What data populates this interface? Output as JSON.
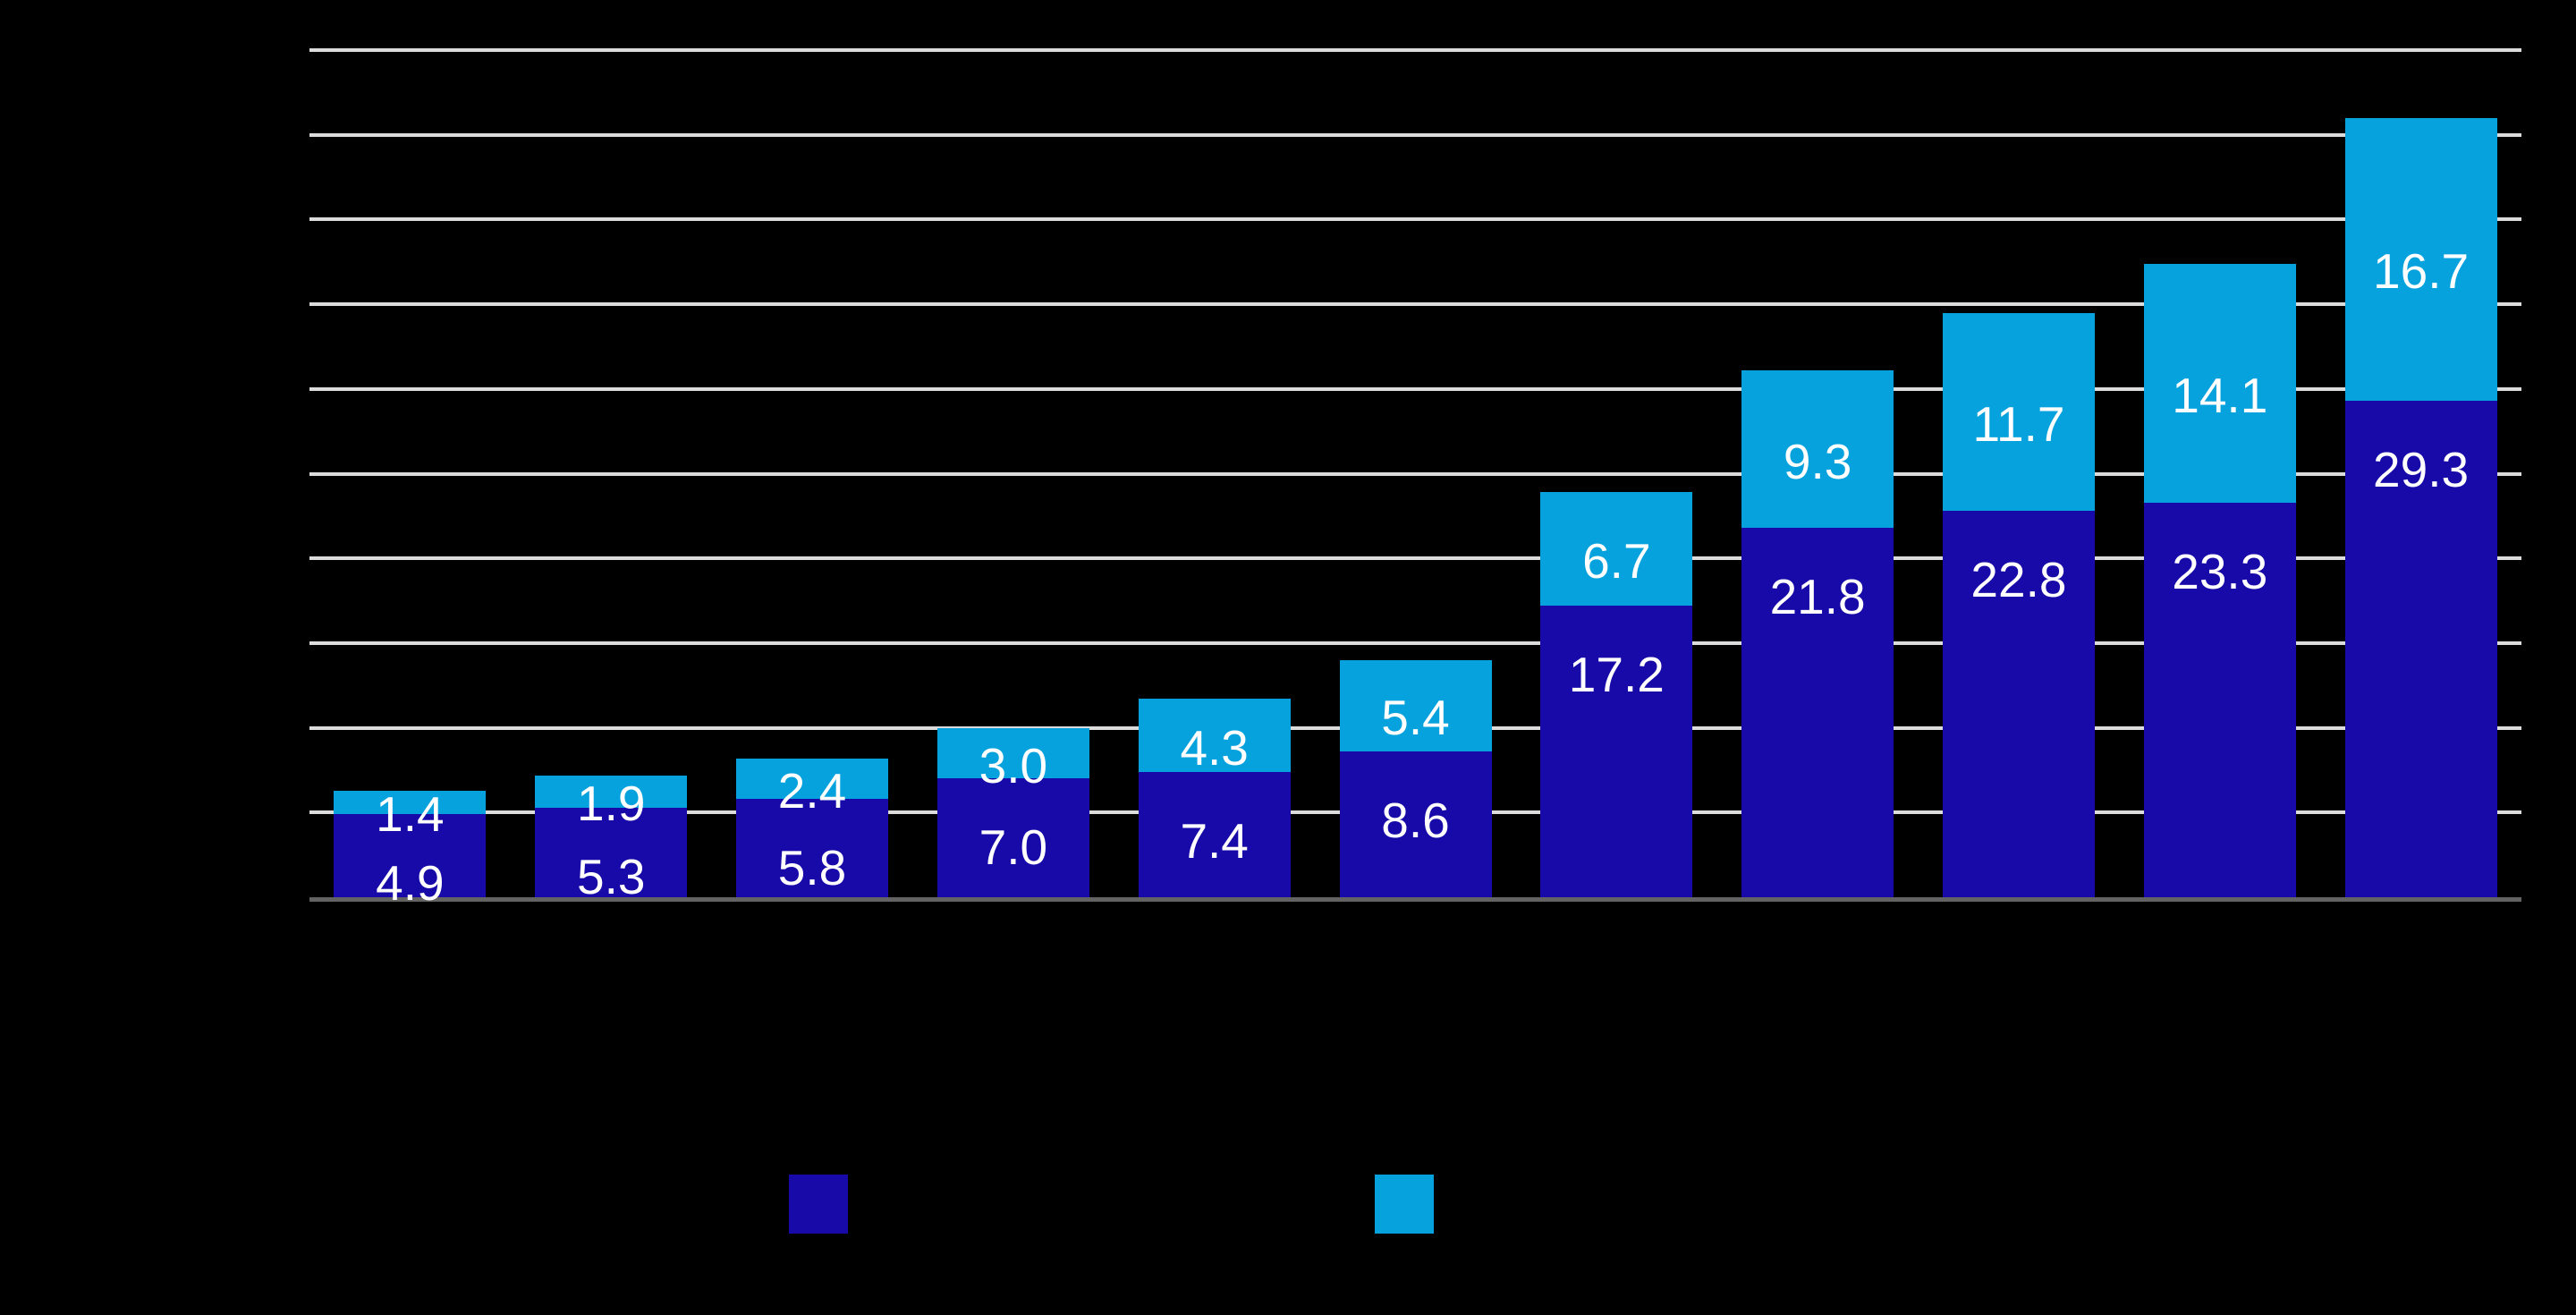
{
  "chart_data": {
    "type": "bar",
    "stacked": true,
    "orientation": "vertical",
    "background_color": "#000000",
    "n_categories": 11,
    "categories": [
      "",
      "",
      "",
      "",
      "",
      "",
      "",
      "",
      "",
      "",
      ""
    ],
    "series": [
      {
        "name": "dark-blue-bottom-segment",
        "color": "#170AA8",
        "values": [
          4.9,
          5.3,
          5.8,
          7.0,
          7.4,
          8.6,
          17.2,
          21.8,
          22.8,
          23.3,
          29.3
        ],
        "labels": [
          "4.9",
          "5.3",
          "5.8",
          "7.0",
          "7.4",
          "8.6",
          "17.2",
          "21.8",
          "22.8",
          "23.3",
          "29.3"
        ]
      },
      {
        "name": "light-blue-top-segment",
        "color": "#06A2DD",
        "values": [
          1.4,
          1.9,
          2.4,
          3.0,
          4.3,
          5.4,
          6.7,
          9.3,
          11.7,
          14.1,
          16.7
        ],
        "labels": [
          "1.4",
          "1.9",
          "2.4",
          "3.0",
          "4.3",
          "5.4",
          "6.7",
          "9.3",
          "11.7",
          "14.1",
          "16.7"
        ]
      }
    ],
    "ylim": [
      0,
      50
    ],
    "gridline_step": 5,
    "grid": true,
    "gridline_color": "#DCDCDC",
    "axis_line_color": "#636363",
    "data_label_color": "#FFFFFF",
    "legend_position": "bottom",
    "legend": [
      {
        "swatch": "dark-blue",
        "color": "#170AA8",
        "label": ""
      },
      {
        "swatch": "light-blue",
        "color": "#06A2DD",
        "label": ""
      }
    ]
  }
}
